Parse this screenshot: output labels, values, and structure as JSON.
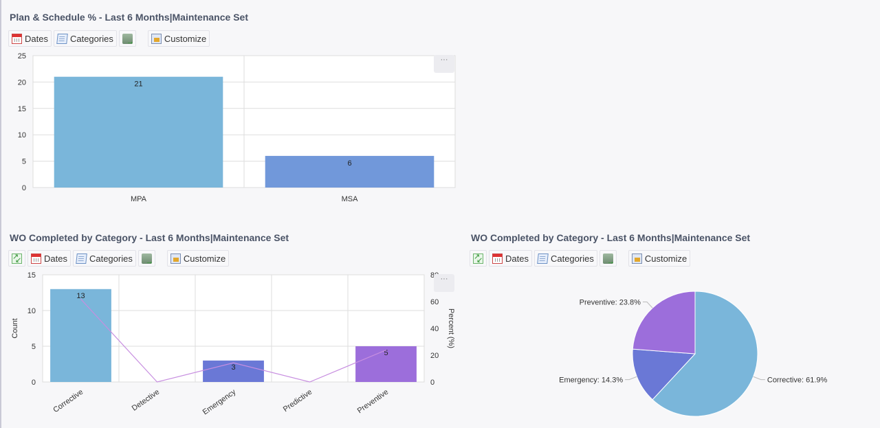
{
  "panels": [
    {
      "title": "Plan & Schedule % - Last 6 Months|Maintenance Set",
      "toolbar": {
        "dates_label": "Dates",
        "categories_label": "Categories",
        "customize_label": "Customize"
      },
      "menu_glyph": "···"
    },
    {
      "title": "WO Completed by Category - Last 6 Months|Maintenance Set",
      "toolbar": {
        "dates_label": "Dates",
        "categories_label": "Categories",
        "customize_label": "Customize"
      },
      "menu_glyph": "···"
    },
    {
      "title": "WO Completed by Category - Last 6 Months|Maintenance Set",
      "toolbar": {
        "dates_label": "Dates",
        "categories_label": "Categories",
        "customize_label": "Customize"
      }
    }
  ],
  "icons": {
    "dates": "calendar-icon",
    "categories": "document-icon",
    "export": "export-icon",
    "customize": "customize-icon",
    "expand": "expand-icon"
  },
  "chart_data": [
    {
      "type": "bar",
      "title": "",
      "categories": [
        "MPA",
        "MSA"
      ],
      "values": [
        21,
        6
      ],
      "data_labels": [
        "21",
        "6"
      ],
      "colors": [
        "#7ab6da",
        "#7198da"
      ],
      "ylim": [
        0,
        25
      ],
      "yticks": [
        "0",
        "5",
        "10",
        "15",
        "20",
        "25"
      ],
      "xlabel": "",
      "ylabel": "",
      "grid": true
    },
    {
      "type": "bar",
      "title": "",
      "categories": [
        "Corrective",
        "Detective",
        "Emergency",
        "Predictive",
        "Preventive"
      ],
      "series": [
        {
          "values": [
            13,
            0,
            3,
            0,
            5
          ],
          "colors": [
            "#7ab6da",
            "#7ab6da",
            "#6a78d6",
            "#7ab6da",
            "#9c6edb"
          ]
        },
        {
          "type": "line",
          "values": [
            61.9,
            0,
            14.3,
            0,
            23.8
          ],
          "color": "#c78ee0",
          "axis": "right"
        }
      ],
      "data_labels": [
        "13",
        "",
        "3",
        "",
        "5"
      ],
      "ylabel": "Count",
      "y2label": "Percent (%)",
      "ylim": [
        0,
        15
      ],
      "yticks": [
        "0",
        "5",
        "10",
        "15"
      ],
      "y2lim": [
        0,
        80
      ],
      "y2ticks": [
        "0",
        "20",
        "40",
        "60",
        "80"
      ],
      "grid": true
    },
    {
      "type": "pie",
      "title": "",
      "slices": [
        {
          "label": "Corrective: 61.9%",
          "value": 61.9,
          "color": "#7ab6da"
        },
        {
          "label": "Emergency: 14.3%",
          "value": 14.3,
          "color": "#6a78d6"
        },
        {
          "label": "Preventive: 23.8%",
          "value": 23.8,
          "color": "#9c6edb"
        }
      ]
    }
  ]
}
